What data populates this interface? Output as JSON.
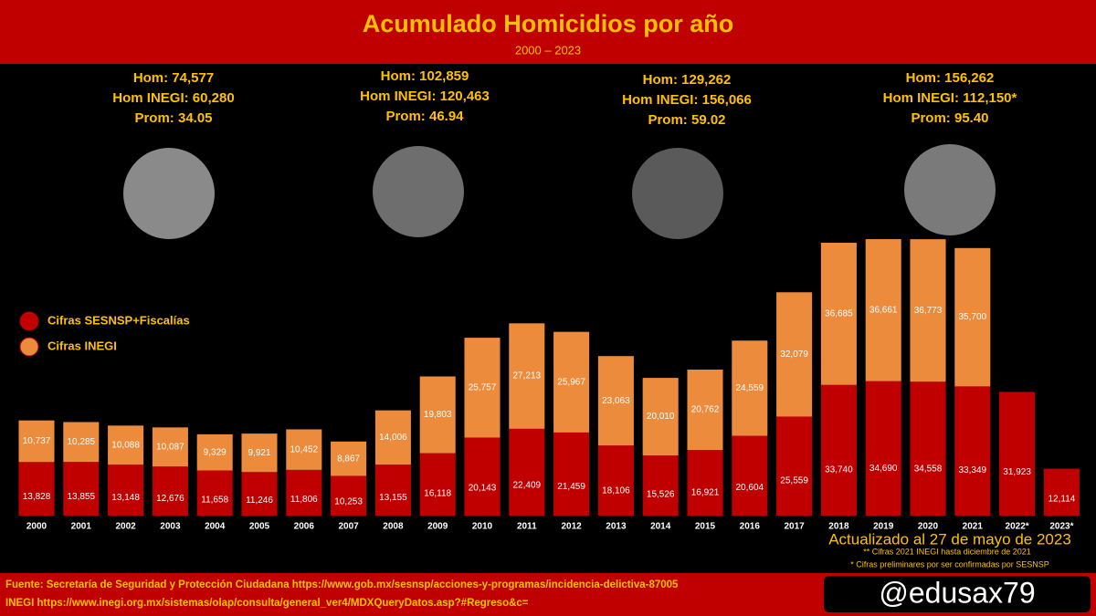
{
  "chart_data": {
    "type": "stacked-bar",
    "title": "Acumulado Homicidios por año",
    "subtitle": "2000 – 2023",
    "categories": [
      "2000",
      "2001",
      "2002",
      "2003",
      "2004",
      "2005",
      "2006",
      "2007",
      "2008",
      "2009",
      "2010",
      "2011",
      "2012",
      "2013",
      "2014",
      "2015",
      "2016",
      "2017",
      "2018",
      "2019",
      "2020",
      "2021",
      "2022*",
      "2023*"
    ],
    "series": [
      {
        "name": "Cifras SESNSP+Fiscalías",
        "color": "#c00000",
        "values": [
          13828,
          13855,
          13148,
          12676,
          11658,
          11246,
          11806,
          10253,
          13155,
          16118,
          20143,
          22409,
          21459,
          18106,
          15526,
          16921,
          20604,
          25559,
          33740,
          34690,
          34558,
          33349,
          31923,
          12114
        ],
        "value_labels": [
          "13,828",
          "13,855",
          "13,148",
          "12,676",
          "11,658",
          "11,246",
          "11,806",
          "10,253",
          "13,155",
          "16,118",
          "20,143",
          "22,409",
          "21,459",
          "18,106",
          "15,526",
          "16,921",
          "20,604",
          "25,559",
          "33,740",
          "34,690",
          "34,558",
          "33,349",
          "31,923",
          "12,114"
        ]
      },
      {
        "name": "Cifras INEGI",
        "color": "#ed8b3d",
        "values": [
          10737,
          10285,
          10088,
          10087,
          9329,
          9921,
          10452,
          8867,
          14006,
          19803,
          25757,
          27213,
          25967,
          23063,
          20010,
          20762,
          24559,
          32079,
          36685,
          36661,
          36773,
          35700,
          null,
          null
        ],
        "value_labels": [
          "10,737",
          "10,285",
          "10,088",
          "10,087",
          "9,329",
          "9,921",
          "10,452",
          "8,867",
          "14,006",
          "19,803",
          "25,757",
          "27,213",
          "25,967",
          "23,063",
          "20,010",
          "20,762",
          "24,559",
          "32,079",
          "36,685",
          "36,661",
          "36,773",
          "35,700",
          null,
          null
        ]
      }
    ],
    "annotations": [
      [
        "Hom: 74,577",
        "Hom INEGI: 60,280",
        "Prom: 34.05"
      ],
      [
        "Hom: 102,859",
        "Hom INEGI: 120,463",
        "Prom: 46.94"
      ],
      [
        "Hom: 129,262",
        "Hom INEGI: 156,066",
        "Prom: 59.02"
      ],
      [
        "Hom: 156,262",
        "Hom INEGI: 112,150*",
        "Prom: 95.40"
      ]
    ],
    "updated": "Actualizado al 27 de mayo de 2023",
    "notes": [
      "** Cifras 2021 INEGI hasta diciembre de 2021",
      "* Cifras preliminares por ser confirmadas por SESNSP"
    ],
    "source": [
      "Fuente: Secretaría de Seguridad y Protección Ciudadana https://www.gob.mx/sesnsp/acciones-y-programas/incidencia-delictiva-87005",
      "INEGI https://www.inegi.org.mx/sistemas/olap/consulta/general_ver4/MDXQueryDatos.asp?#Regreso&c="
    ],
    "handle": "@edusax79"
  }
}
